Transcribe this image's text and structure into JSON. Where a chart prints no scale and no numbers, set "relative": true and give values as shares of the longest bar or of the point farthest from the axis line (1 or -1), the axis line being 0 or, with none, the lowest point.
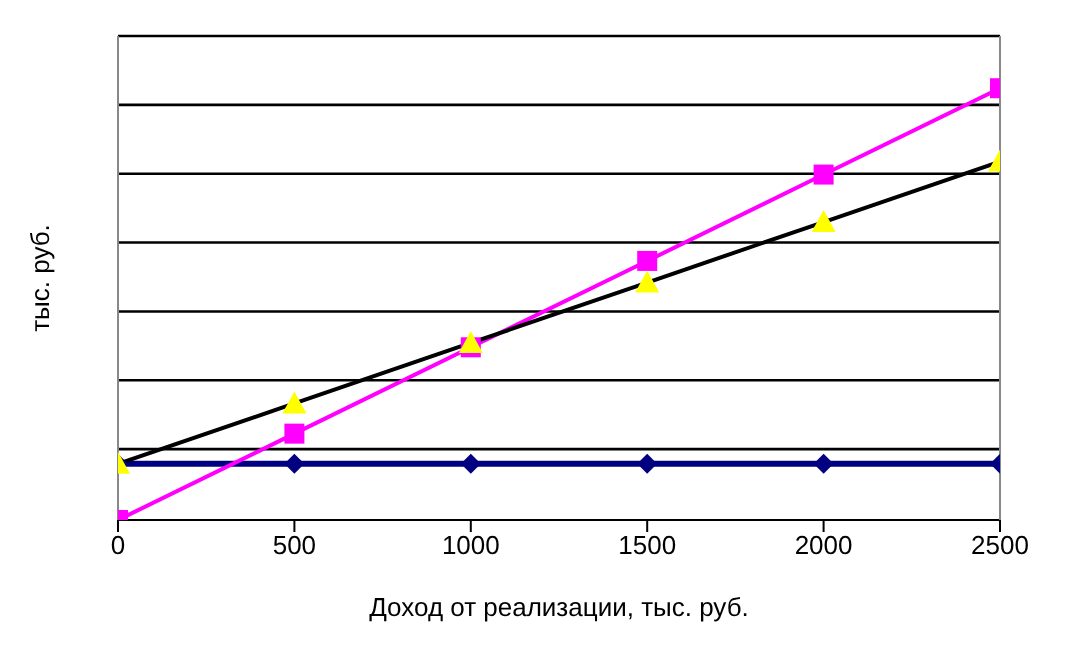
{
  "chart_data": {
    "type": "line",
    "relative": true,
    "xlabel": "Доход от реализации, тыс. руб.",
    "ylabel": "тыс. руб.",
    "x": [
      0,
      500,
      1000,
      1500,
      2000,
      2500
    ],
    "xlim": [
      0,
      2500
    ],
    "xticks": [
      0,
      500,
      1000,
      1500,
      2000,
      2500
    ],
    "grid": "y",
    "legend": false,
    "series": [
      {
        "color": "#000080",
        "marker": "diamond",
        "values": [
          0.13,
          0.13,
          0.13,
          0.13,
          0.13,
          0.13
        ]
      },
      {
        "color": "#ff00ff",
        "marker": "square",
        "values": [
          0,
          0.2,
          0.4,
          0.6,
          0.8,
          1
        ]
      },
      {
        "color": "#000000",
        "colors": [
          "#ffff00",
          "#ffff00",
          "#ffff00",
          "#ffff00",
          "#ffff00",
          "#ffff00"
        ],
        "marker": "triangle",
        "values": [
          0.13,
          0.27,
          0.41,
          0.55,
          0.69,
          0.83
        ]
      }
    ]
  }
}
